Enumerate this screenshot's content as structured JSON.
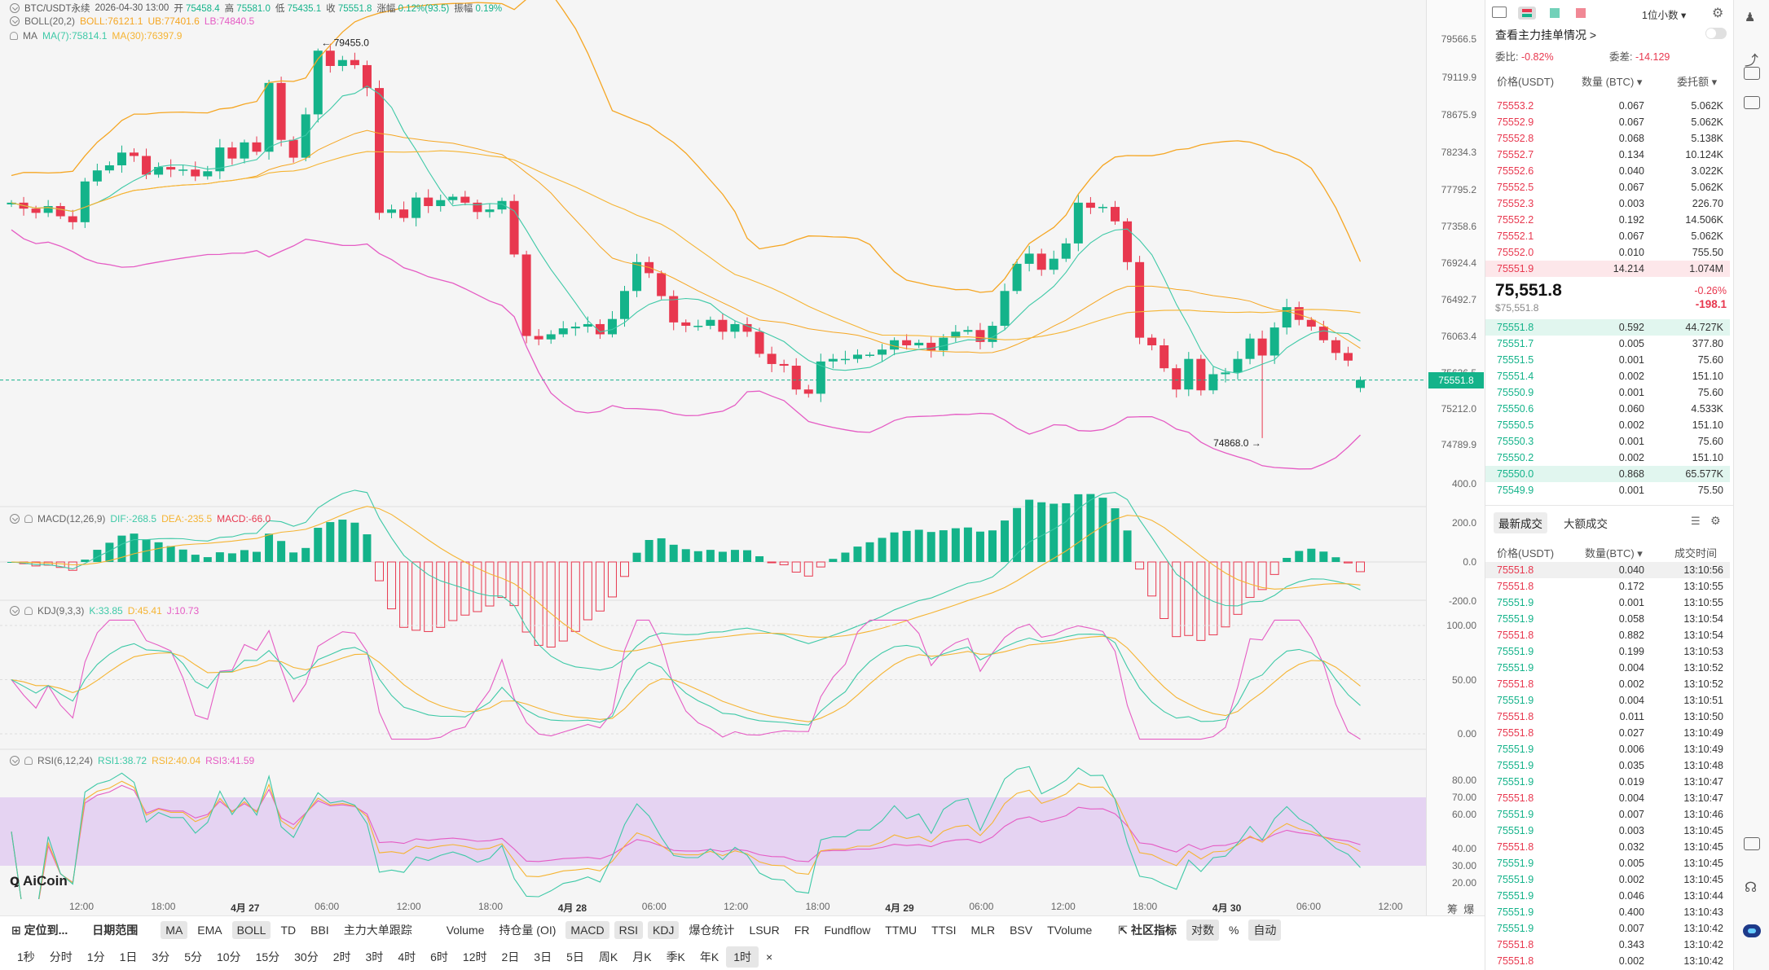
{
  "header": {
    "symbol": "BTC/USDT永续",
    "time": "2026-04-30 13:00",
    "open_l": "开",
    "open": "75458.4",
    "high_l": "高",
    "high": "75581.0",
    "low_l": "低",
    "low": "75435.1",
    "close_l": "收",
    "close": "75551.8",
    "chg_l": "涨幅",
    "chg": "0.12%(93.5)",
    "amp_l": "振幅",
    "amp": "0.19%"
  },
  "boll": {
    "name": "BOLL(20,2)",
    "mb": "BOLL:76121.1",
    "ub": "UB:77401.6",
    "lb": "LB:74840.5"
  },
  "ma": {
    "name": "MA",
    "ma7": "MA(7):75814.1",
    "ma30": "MA(30):76397.9"
  },
  "macd": {
    "name": "MACD(12,26,9)",
    "dif": "DIF:-268.5",
    "dea": "DEA:-235.5",
    "macd": "MACD:-66.0"
  },
  "kdj": {
    "name": "KDJ(9,3,3)",
    "k": "K:33.85",
    "d": "D:45.41",
    "j": "J:10.73"
  },
  "rsi": {
    "name": "RSI(6,12,24)",
    "rsi1": "RSI1:38.72",
    "rsi2": "RSI2:40.04",
    "rsi3": "RSI3:41.59"
  },
  "watermark": "AiCoin",
  "annotations": {
    "high": "79455.0",
    "low": "74868.0"
  },
  "price_axis": [
    "79566.5",
    "79119.9",
    "78675.9",
    "78234.3",
    "77795.2",
    "77358.6",
    "76924.4",
    "76492.7",
    "76063.4",
    "75636.5",
    "75212.0",
    "74789.9"
  ],
  "current_price": "75551.8",
  "macd_axis": [
    "400.0",
    "200.0",
    "0.0",
    "-200.0"
  ],
  "kdj_axis": [
    "100.00",
    "50.00",
    "0.00"
  ],
  "rsi_axis": [
    "80.00",
    "70.00",
    "60.00",
    "40.00",
    "30.00",
    "20.00"
  ],
  "time_axis": [
    {
      "t": "12:00",
      "b": false
    },
    {
      "t": "18:00",
      "b": false
    },
    {
      "t": "4月 27",
      "b": true
    },
    {
      "t": "06:00",
      "b": false
    },
    {
      "t": "12:00",
      "b": false
    },
    {
      "t": "18:00",
      "b": false
    },
    {
      "t": "4月 28",
      "b": true
    },
    {
      "t": "06:00",
      "b": false
    },
    {
      "t": "12:00",
      "b": false
    },
    {
      "t": "18:00",
      "b": false
    },
    {
      "t": "4月 29",
      "b": true
    },
    {
      "t": "06:00",
      "b": false
    },
    {
      "t": "12:00",
      "b": false
    },
    {
      "t": "18:00",
      "b": false
    },
    {
      "t": "4月 30",
      "b": true
    },
    {
      "t": "06:00",
      "b": false
    },
    {
      "t": "12:00",
      "b": false
    }
  ],
  "axis_corner": [
    "筹",
    "爆"
  ],
  "toolbar1": {
    "locate": "定位到...",
    "range": "日期范围",
    "indicators": [
      {
        "l": "MA",
        "on": true
      },
      {
        "l": "EMA",
        "on": false
      },
      {
        "l": "BOLL",
        "on": true
      },
      {
        "l": "TD",
        "on": false
      },
      {
        "l": "BBI",
        "on": false
      },
      {
        "l": "主力大单跟踪",
        "on": false
      }
    ],
    "subs": [
      {
        "l": "Volume",
        "on": false
      },
      {
        "l": "持仓量 (OI)",
        "on": false
      },
      {
        "l": "MACD",
        "on": true
      },
      {
        "l": "RSI",
        "on": true
      },
      {
        "l": "KDJ",
        "on": true
      },
      {
        "l": "爆仓统计",
        "on": false
      },
      {
        "l": "LSUR",
        "on": false
      },
      {
        "l": "FR",
        "on": false
      },
      {
        "l": "Fundflow",
        "on": false
      },
      {
        "l": "TTMU",
        "on": false
      },
      {
        "l": "TTSI",
        "on": false
      },
      {
        "l": "MLR",
        "on": false
      },
      {
        "l": "BSV",
        "on": false
      },
      {
        "l": "TVolume",
        "on": false
      }
    ],
    "community": "社区指标",
    "log": "对数",
    "pct": "%",
    "auto": "自动"
  },
  "toolbar2": {
    "periods": [
      "1秒",
      "分时",
      "1分",
      "1日",
      "3分",
      "5分",
      "10分",
      "15分",
      "30分",
      "2时",
      "3时",
      "4时",
      "6时",
      "12时",
      "2日",
      "3日",
      "5日",
      "周K",
      "月K",
      "季K",
      "年K",
      "1时"
    ],
    "active": "1时",
    "close": "×"
  },
  "orderbook": {
    "precision": "1位小数",
    "depth_link": "查看主力挂单情况 >",
    "ratio_l": "委比:",
    "ratio": "-0.82%",
    "diff_l": "委差:",
    "diff": "-14.129",
    "cols": [
      "价格(USDT)",
      "数量 (BTC)",
      "委托额"
    ],
    "asks": [
      [
        "75553.2",
        "0.067",
        "5.062K"
      ],
      [
        "75552.9",
        "0.067",
        "5.062K"
      ],
      [
        "75552.8",
        "0.068",
        "5.138K"
      ],
      [
        "75552.7",
        "0.134",
        "10.124K"
      ],
      [
        "75552.6",
        "0.040",
        "3.022K"
      ],
      [
        "75552.5",
        "0.067",
        "5.062K"
      ],
      [
        "75552.3",
        "0.003",
        "226.70"
      ],
      [
        "75552.2",
        "0.192",
        "14.506K"
      ],
      [
        "75552.1",
        "0.067",
        "5.062K"
      ],
      [
        "75552.0",
        "0.010",
        "755.50"
      ],
      [
        "75551.9",
        "14.214",
        "1.074M"
      ]
    ],
    "mid": "75,551.8",
    "mid_sub": "$75,551.8",
    "mid_pct": "-0.26%",
    "mid_chg": "-198.1",
    "bids": [
      [
        "75551.8",
        "0.592",
        "44.727K"
      ],
      [
        "75551.7",
        "0.005",
        "377.80"
      ],
      [
        "75551.5",
        "0.001",
        "75.60"
      ],
      [
        "75551.4",
        "0.002",
        "151.10"
      ],
      [
        "75550.9",
        "0.001",
        "75.60"
      ],
      [
        "75550.6",
        "0.060",
        "4.533K"
      ],
      [
        "75550.5",
        "0.002",
        "151.10"
      ],
      [
        "75550.3",
        "0.001",
        "75.60"
      ],
      [
        "75550.2",
        "0.002",
        "151.10"
      ],
      [
        "75550.0",
        "0.868",
        "65.577K"
      ],
      [
        "75549.9",
        "0.001",
        "75.50"
      ]
    ]
  },
  "trades": {
    "tab1": "最新成交",
    "tab2": "大额成交",
    "cols": [
      "价格(USDT)",
      "数量(BTC)",
      "成交时间"
    ],
    "rows": [
      [
        "75551.8",
        "0.040",
        "13:10:56",
        "r"
      ],
      [
        "75551.8",
        "0.172",
        "13:10:55",
        "r"
      ],
      [
        "75551.9",
        "0.001",
        "13:10:55",
        "g"
      ],
      [
        "75551.9",
        "0.058",
        "13:10:54",
        "g"
      ],
      [
        "75551.8",
        "0.882",
        "13:10:54",
        "r"
      ],
      [
        "75551.9",
        "0.199",
        "13:10:53",
        "g"
      ],
      [
        "75551.9",
        "0.004",
        "13:10:52",
        "g"
      ],
      [
        "75551.8",
        "0.002",
        "13:10:52",
        "r"
      ],
      [
        "75551.9",
        "0.004",
        "13:10:51",
        "g"
      ],
      [
        "75551.8",
        "0.011",
        "13:10:50",
        "r"
      ],
      [
        "75551.8",
        "0.027",
        "13:10:49",
        "r"
      ],
      [
        "75551.9",
        "0.006",
        "13:10:49",
        "g"
      ],
      [
        "75551.9",
        "0.035",
        "13:10:48",
        "g"
      ],
      [
        "75551.9",
        "0.019",
        "13:10:47",
        "g"
      ],
      [
        "75551.8",
        "0.004",
        "13:10:47",
        "r"
      ],
      [
        "75551.9",
        "0.007",
        "13:10:46",
        "g"
      ],
      [
        "75551.9",
        "0.003",
        "13:10:45",
        "g"
      ],
      [
        "75551.8",
        "0.032",
        "13:10:45",
        "r"
      ],
      [
        "75551.9",
        "0.005",
        "13:10:45",
        "g"
      ],
      [
        "75551.9",
        "0.002",
        "13:10:45",
        "g"
      ],
      [
        "75551.9",
        "0.046",
        "13:10:44",
        "g"
      ],
      [
        "75551.9",
        "0.400",
        "13:10:43",
        "g"
      ],
      [
        "75551.9",
        "0.007",
        "13:10:42",
        "g"
      ],
      [
        "75551.8",
        "0.343",
        "13:10:42",
        "r"
      ],
      [
        "75551.8",
        "0.002",
        "13:10:42",
        "r"
      ]
    ]
  },
  "colors": {
    "up": "#14b38a",
    "down": "#e8384f",
    "ma7": "#3ec9a7",
    "ma30": "#f5b433",
    "boll_mid": "#f5a623",
    "boll_band": "#e55cc4",
    "rsi_band": "#e5d3f2"
  }
}
